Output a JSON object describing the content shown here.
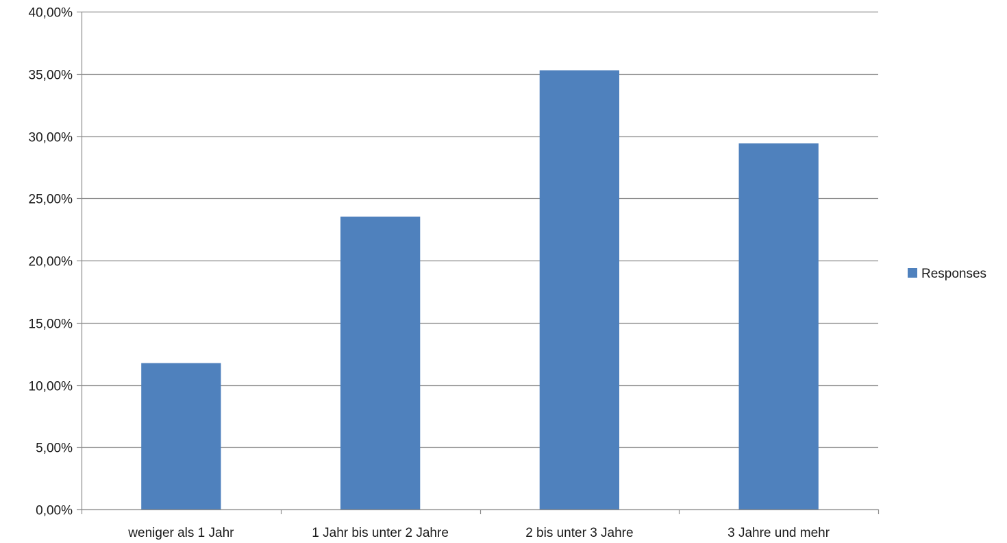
{
  "chart_data": {
    "type": "bar",
    "categories": [
      "weniger als 1 Jahr",
      "1 Jahr bis unter 2 Jahre",
      "2 bis unter 3 Jahre",
      "3 Jahre und mehr"
    ],
    "series": [
      {
        "name": "Responses",
        "values": [
          11.76,
          23.53,
          35.29,
          29.41
        ],
        "color": "#4f81bd"
      }
    ],
    "y_ticks": [
      "0,00%",
      "5,00%",
      "10,00%",
      "15,00%",
      "20,00%",
      "25,00%",
      "30,00%",
      "35,00%",
      "40,00%"
    ],
    "ylim": [
      0,
      40
    ],
    "y_step": 5,
    "grid": true,
    "legend_position": "right",
    "title": "",
    "xlabel": "",
    "ylabel": "",
    "colors": {
      "bar": "#4f81bd",
      "grid": "#8c8c8c",
      "axis": "#8c8c8c",
      "text": "#1a1a1a"
    }
  }
}
